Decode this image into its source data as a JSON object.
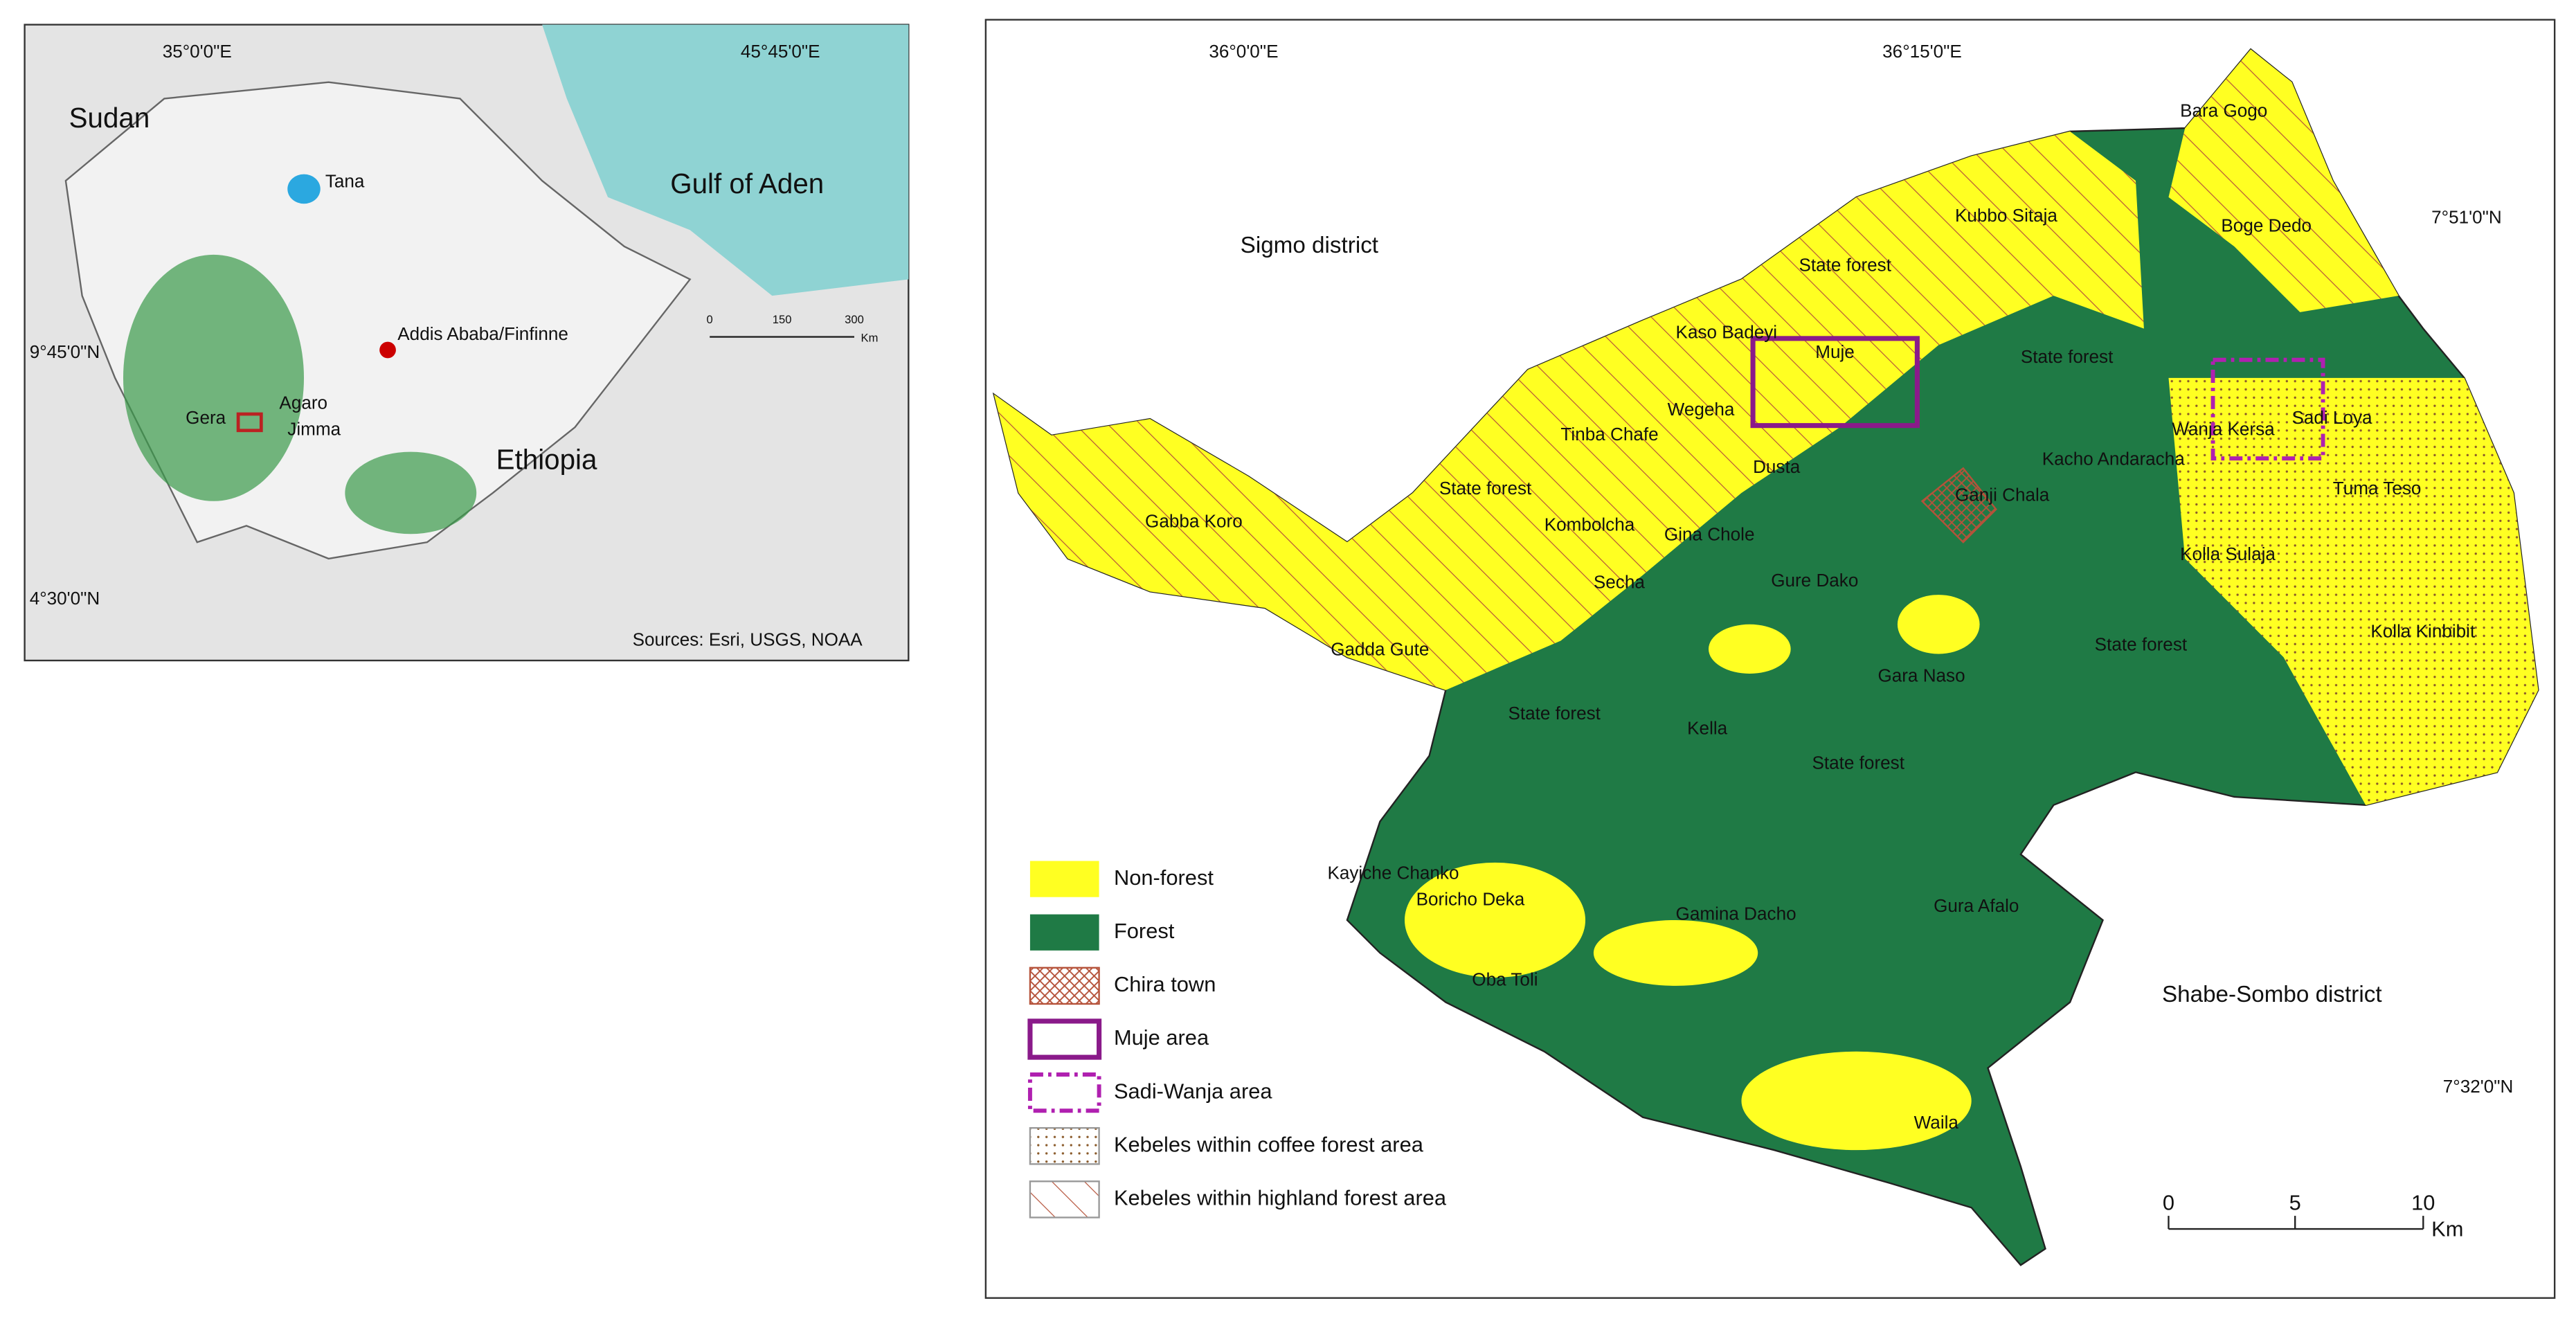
{
  "inset_map": {
    "graticule_labels": [
      "35°0'0\"E",
      "45°45'0\"E",
      "9°45'0\"N",
      "4°30'0\"N"
    ],
    "places": [
      "Sudan",
      "Gulf of Aden",
      "Ethiopia",
      "Tana",
      "Addis Ababa/Finfinne",
      "Agaro",
      "Gera",
      "Jimma"
    ],
    "scale_bar": {
      "ticks": [
        "0",
        "150",
        "300"
      ],
      "unit": "Km"
    },
    "source": "Sources: Esri, USGS, NOAA"
  },
  "main_map": {
    "graticule_labels": [
      "36°0'0\"E",
      "36°15'0\"E",
      "7°51'0\"N",
      "7°32'0\"N"
    ],
    "districts": [
      "Sigmo district",
      "Shabe-Sombo district"
    ],
    "kebeles": [
      "Bara Gogo",
      "Boge Dedo",
      "Kubbo Sitaja",
      "State forest",
      "Kaso Badeyi",
      "Muje",
      "State forest",
      "Wegeha",
      "Tinba Chafe",
      "Wanja Kersa",
      "Sadi Loya",
      "Kacho Andaracha",
      "Dusta",
      "Ganji Chala",
      "Tuma Teso",
      "State forest",
      "Gabba Koro",
      "Kombolcha",
      "Gina Chole",
      "Kolla Sulaja",
      "Secha",
      "Gure Dako",
      "Kolla Kinbibit",
      "State forest",
      "Gadda Gute",
      "Gara Naso",
      "State forest",
      "Kella",
      "State forest",
      "Kayiche Chanko",
      "Boricho Deka",
      "Gura Afalo",
      "Gamina Dacho",
      "Oba Toli",
      "Waila"
    ],
    "legend": [
      "Non-forest",
      "Forest",
      "Chira town",
      "Muje area",
      "Sadi-Wanja area",
      "Kebeles within coffee forest area",
      "Kebeles within highland forest area"
    ],
    "scale_bar": {
      "ticks": [
        "0",
        "5",
        "10"
      ],
      "unit": "Km"
    }
  }
}
